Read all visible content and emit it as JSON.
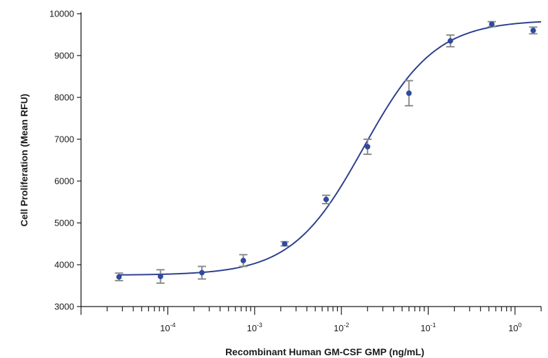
{
  "chart_data": {
    "type": "scatter",
    "title": "",
    "xlabel": "Recombinant Human GM-CSF GMP (ng/mL)",
    "ylabel": "Cell Proliferation (Mean RFU)",
    "xscale": "log",
    "xlim": [
      1e-05,
      2.0
    ],
    "ylim": [
      3000,
      10000
    ],
    "grid": false,
    "legend": "none",
    "x_ticks": [
      {
        "value": 0.0001,
        "base": "10",
        "exp": "-4"
      },
      {
        "value": 0.001,
        "base": "10",
        "exp": "-3"
      },
      {
        "value": 0.01,
        "base": "10",
        "exp": "-2"
      },
      {
        "value": 0.1,
        "base": "10",
        "exp": "-1"
      },
      {
        "value": 1,
        "base": "10",
        "exp": "0"
      }
    ],
    "y_ticks": [
      3000,
      4000,
      5000,
      6000,
      7000,
      8000,
      9000,
      10000
    ],
    "points": [
      {
        "x": 2.74e-05,
        "y": 3710,
        "err": 90
      },
      {
        "x": 8.23e-05,
        "y": 3720,
        "err": 160
      },
      {
        "x": 0.000247,
        "y": 3810,
        "err": 150
      },
      {
        "x": 0.000741,
        "y": 4100,
        "err": 140
      },
      {
        "x": 0.00222,
        "y": 4500,
        "err": 50
      },
      {
        "x": 0.00667,
        "y": 5560,
        "err": 100
      },
      {
        "x": 0.02,
        "y": 6820,
        "err": 180
      },
      {
        "x": 0.06,
        "y": 8100,
        "err": 300
      },
      {
        "x": 0.18,
        "y": 9350,
        "err": 140
      },
      {
        "x": 0.54,
        "y": 9750,
        "err": 60
      },
      {
        "x": 1.62,
        "y": 9600,
        "err": 80
      }
    ],
    "fit_curve": {
      "model": "4PL",
      "bottom": 3750,
      "top": 9850,
      "ec50": 0.018,
      "hill": 1.05
    },
    "colors": {
      "points": "#2f4a9e",
      "curve": "#2b3f8f",
      "error_bars": "#8a8a8a",
      "axes": "#1a1a1a"
    }
  }
}
